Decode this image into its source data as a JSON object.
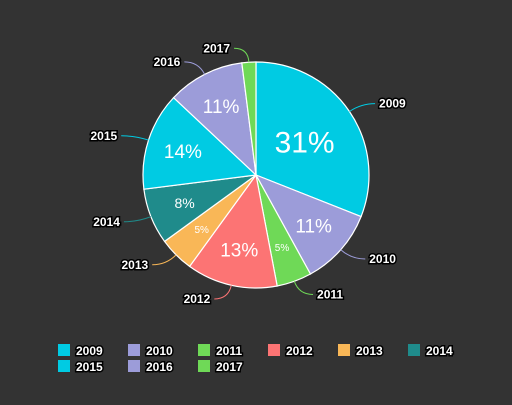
{
  "chart_data": {
    "type": "pie",
    "categories": [
      "2009",
      "2010",
      "2011",
      "2012",
      "2013",
      "2014",
      "2015",
      "2016",
      "2017"
    ],
    "values": [
      31,
      11,
      5,
      13,
      5,
      8,
      14,
      11,
      2
    ],
    "value_labels": [
      "31%",
      "11%",
      "5%",
      "13%",
      "5%",
      "8%",
      "14%",
      "11%",
      ""
    ],
    "colors": [
      "#00cbe3",
      "#9c9cd9",
      "#6fd957",
      "#fc7474",
      "#f9b757",
      "#1f8b8b",
      "#00cbe3",
      "#9c9cd9",
      "#6fd957"
    ],
    "legend": {
      "position": "bottom",
      "entries": [
        "2009",
        "2010",
        "2011",
        "2012",
        "2013",
        "2014",
        "2015",
        "2016",
        "2017"
      ]
    },
    "title": "",
    "start_angle": "top, clockwise"
  }
}
